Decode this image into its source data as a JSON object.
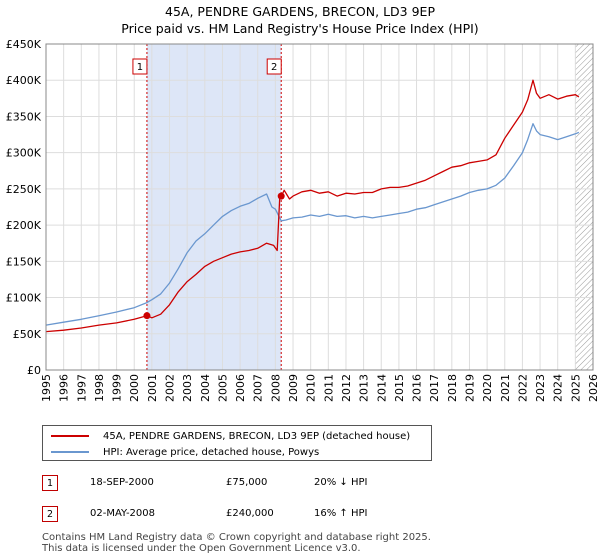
{
  "title_line1": "45A, PENDRE GARDENS, BRECON, LD3 9EP",
  "title_line2": "Price paid vs. HM Land Registry's House Price Index (HPI)",
  "colors": {
    "property": "#cc0000",
    "hpi": "#6a97cf",
    "shade": "#dde6f7",
    "hatch": "#999999",
    "marker_border": "#cc0000",
    "grid": "#dddddd"
  },
  "chart_data": {
    "type": "line",
    "xlim": [
      1995,
      2026
    ],
    "ylim": [
      0,
      450000
    ],
    "x_ticks": [
      1995,
      1996,
      1997,
      1998,
      1999,
      2000,
      2001,
      2002,
      2003,
      2004,
      2005,
      2006,
      2007,
      2008,
      2009,
      2010,
      2011,
      2012,
      2013,
      2014,
      2015,
      2016,
      2017,
      2018,
      2019,
      2020,
      2021,
      2022,
      2023,
      2024,
      2025,
      2026
    ],
    "y_ticks": [
      {
        "value": 0,
        "label": "£0"
      },
      {
        "value": 50000,
        "label": "£50K"
      },
      {
        "value": 100000,
        "label": "£100K"
      },
      {
        "value": 150000,
        "label": "£150K"
      },
      {
        "value": 200000,
        "label": "£200K"
      },
      {
        "value": 250000,
        "label": "£250K"
      },
      {
        "value": 300000,
        "label": "£300K"
      },
      {
        "value": 350000,
        "label": "£350K"
      },
      {
        "value": 400000,
        "label": "£400K"
      },
      {
        "value": 450000,
        "label": "£450K"
      }
    ],
    "shaded_period": [
      2000.72,
      2008.33
    ],
    "hatched_after": 2025.0,
    "series": [
      {
        "name": "45A, PENDRE GARDENS, BRECON, LD3 9EP (detached house)",
        "color": "#cc0000",
        "x": [
          1995,
          1996,
          1997,
          1998,
          1999,
          2000,
          2000.72,
          2001,
          2001.5,
          2002,
          2002.5,
          2003,
          2003.5,
          2004,
          2004.5,
          2005,
          2005.5,
          2006,
          2006.5,
          2007,
          2007.5,
          2007.9,
          2008.1,
          2008.25,
          2008.33,
          2008.5,
          2008.8,
          2009,
          2009.5,
          2010,
          2010.5,
          2011,
          2011.5,
          2012,
          2012.5,
          2013,
          2013.5,
          2014,
          2014.5,
          2015,
          2015.5,
          2016,
          2016.5,
          2017,
          2017.5,
          2018,
          2018.5,
          2019,
          2019.5,
          2020,
          2020.5,
          2021,
          2021.5,
          2022,
          2022.3,
          2022.6,
          2022.8,
          2023,
          2023.5,
          2024,
          2024.5,
          2025,
          2025.2
        ],
        "values": [
          53000,
          55000,
          58000,
          62000,
          65000,
          70000,
          75000,
          72000,
          77000,
          90000,
          108000,
          122000,
          132000,
          143000,
          150000,
          155000,
          160000,
          163000,
          165000,
          168000,
          175000,
          172000,
          165000,
          240000,
          240000,
          248000,
          236000,
          240000,
          246000,
          248000,
          244000,
          246000,
          240000,
          244000,
          243000,
          245000,
          245000,
          250000,
          252000,
          252000,
          254000,
          258000,
          262000,
          268000,
          274000,
          280000,
          282000,
          286000,
          288000,
          290000,
          297000,
          320000,
          338000,
          356000,
          373000,
          400000,
          382000,
          375000,
          380000,
          374000,
          378000,
          380000,
          377000
        ]
      },
      {
        "name": "HPI: Average price, detached house, Powys",
        "color": "#6a97cf",
        "x": [
          1995,
          1996,
          1997,
          1998,
          1999,
          2000,
          2000.72,
          2001,
          2001.5,
          2002,
          2002.5,
          2003,
          2003.5,
          2004,
          2004.5,
          2005,
          2005.5,
          2006,
          2006.5,
          2007,
          2007.5,
          2007.8,
          2008,
          2008.33,
          2008.6,
          2009,
          2009.5,
          2010,
          2010.5,
          2011,
          2011.5,
          2012,
          2012.5,
          2013,
          2013.5,
          2014,
          2014.5,
          2015,
          2015.5,
          2016,
          2016.5,
          2017,
          2017.5,
          2018,
          2018.5,
          2019,
          2019.5,
          2020,
          2020.5,
          2021,
          2021.5,
          2022,
          2022.3,
          2022.6,
          2022.8,
          2023,
          2023.5,
          2024,
          2024.5,
          2025,
          2025.2
        ],
        "values": [
          62000,
          66000,
          70000,
          75000,
          80000,
          86000,
          93000,
          97000,
          105000,
          120000,
          140000,
          162000,
          178000,
          188000,
          200000,
          212000,
          220000,
          226000,
          230000,
          237000,
          243000,
          225000,
          222000,
          206000,
          207000,
          210000,
          211000,
          214000,
          212000,
          215000,
          212000,
          213000,
          210000,
          212000,
          210000,
          212000,
          214000,
          216000,
          218000,
          222000,
          224000,
          228000,
          232000,
          236000,
          240000,
          245000,
          248000,
          250000,
          255000,
          265000,
          282000,
          300000,
          318000,
          340000,
          330000,
          325000,
          322000,
          318000,
          322000,
          326000,
          328000
        ]
      }
    ],
    "markers": [
      {
        "label": "1",
        "x": 2000.72,
        "y": 75000
      },
      {
        "label": "2",
        "x": 2008.33,
        "y": 240000
      }
    ]
  },
  "legend": {
    "property_label": "45A, PENDRE GARDENS, BRECON, LD3 9EP (detached house)",
    "hpi_label": "HPI: Average price, detached house, Powys"
  },
  "transactions": [
    {
      "num": "1",
      "date": "18-SEP-2000",
      "price": "£75,000",
      "hpi": "20% ↓ HPI"
    },
    {
      "num": "2",
      "date": "02-MAY-2008",
      "price": "£240,000",
      "hpi": "16% ↑ HPI"
    }
  ],
  "footer": {
    "line1": "Contains HM Land Registry data © Crown copyright and database right 2025.",
    "line2": "This data is licensed under the Open Government Licence v3.0."
  }
}
